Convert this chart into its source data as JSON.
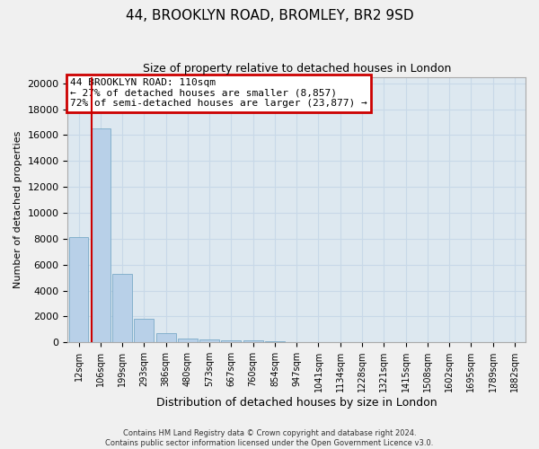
{
  "title": "44, BROOKLYN ROAD, BROMLEY, BR2 9SD",
  "subtitle": "Size of property relative to detached houses in London",
  "xlabel": "Distribution of detached houses by size in London",
  "ylabel": "Number of detached properties",
  "bar_labels": [
    "12sqm",
    "106sqm",
    "199sqm",
    "293sqm",
    "386sqm",
    "480sqm",
    "573sqm",
    "667sqm",
    "760sqm",
    "854sqm",
    "947sqm",
    "1041sqm",
    "1134sqm",
    "1228sqm",
    "1321sqm",
    "1415sqm",
    "1508sqm",
    "1602sqm",
    "1695sqm",
    "1789sqm",
    "1882sqm"
  ],
  "bar_values": [
    8100,
    16500,
    5300,
    1850,
    700,
    320,
    200,
    160,
    130,
    100,
    0,
    0,
    0,
    0,
    0,
    0,
    0,
    0,
    0,
    0,
    0
  ],
  "bar_color": "#b8d0e8",
  "bar_edgecolor": "#7aaac8",
  "annotation_title": "44 BROOKLYN ROAD: 110sqm",
  "annotation_line1": "← 27% of detached houses are smaller (8,857)",
  "annotation_line2": "72% of semi-detached houses are larger (23,877) →",
  "annotation_box_facecolor": "#ffffff",
  "annotation_box_edgecolor": "#cc0000",
  "property_line_color": "#cc0000",
  "property_line_xindex": 1,
  "ylim": [
    0,
    20500
  ],
  "yticks": [
    0,
    2000,
    4000,
    6000,
    8000,
    10000,
    12000,
    14000,
    16000,
    18000,
    20000
  ],
  "grid_color": "#c8d8e8",
  "bg_color": "#dde8f0",
  "fig_facecolor": "#f0f0f0",
  "footer_line1": "Contains HM Land Registry data © Crown copyright and database right 2024.",
  "footer_line2": "Contains public sector information licensed under the Open Government Licence v3.0."
}
